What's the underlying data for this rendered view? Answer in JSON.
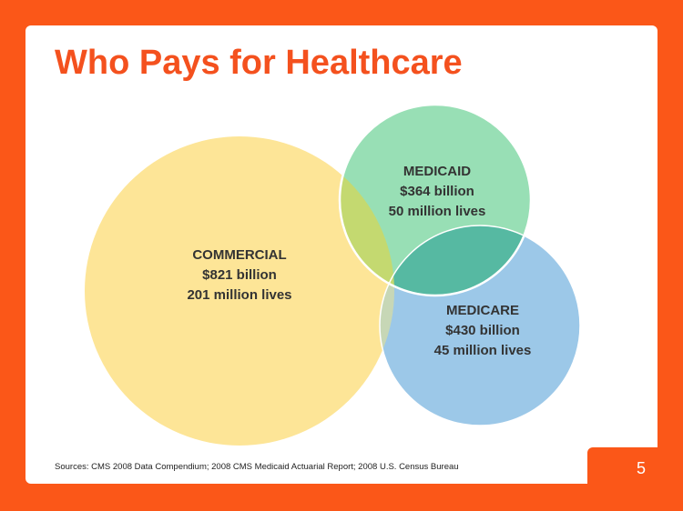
{
  "title": "Who Pays for Healthcare",
  "circles": {
    "commercial": {
      "name": "COMMERCIAL",
      "amount": "$821 billion",
      "lives": "201 million lives",
      "dollars_billion": 821,
      "lives_million": 201,
      "color": "#fde597"
    },
    "medicaid": {
      "name": "MEDICAID",
      "amount": "$364 billion",
      "lives": "50 million lives",
      "dollars_billion": 364,
      "lives_million": 50,
      "color": "#98dfb5"
    },
    "medicare": {
      "name": "MEDICARE",
      "amount": "$430 billion",
      "lives": "45 million lives",
      "dollars_billion": 430,
      "lives_million": 45,
      "color": "#9cc8e8"
    }
  },
  "overlap_colors": {
    "commercial_medicaid": "#c4d970",
    "medicaid_medicare": "#56b9a2",
    "commercial_medicare": "#c7d7b6"
  },
  "sources": "Sources: CMS 2008 Data Compendium; 2008 CMS Medicaid Actuarial Report; 2008 U.S. Census Bureau",
  "page_number": "5",
  "colors": {
    "accent": "#fb5718",
    "title": "#f4511e"
  }
}
